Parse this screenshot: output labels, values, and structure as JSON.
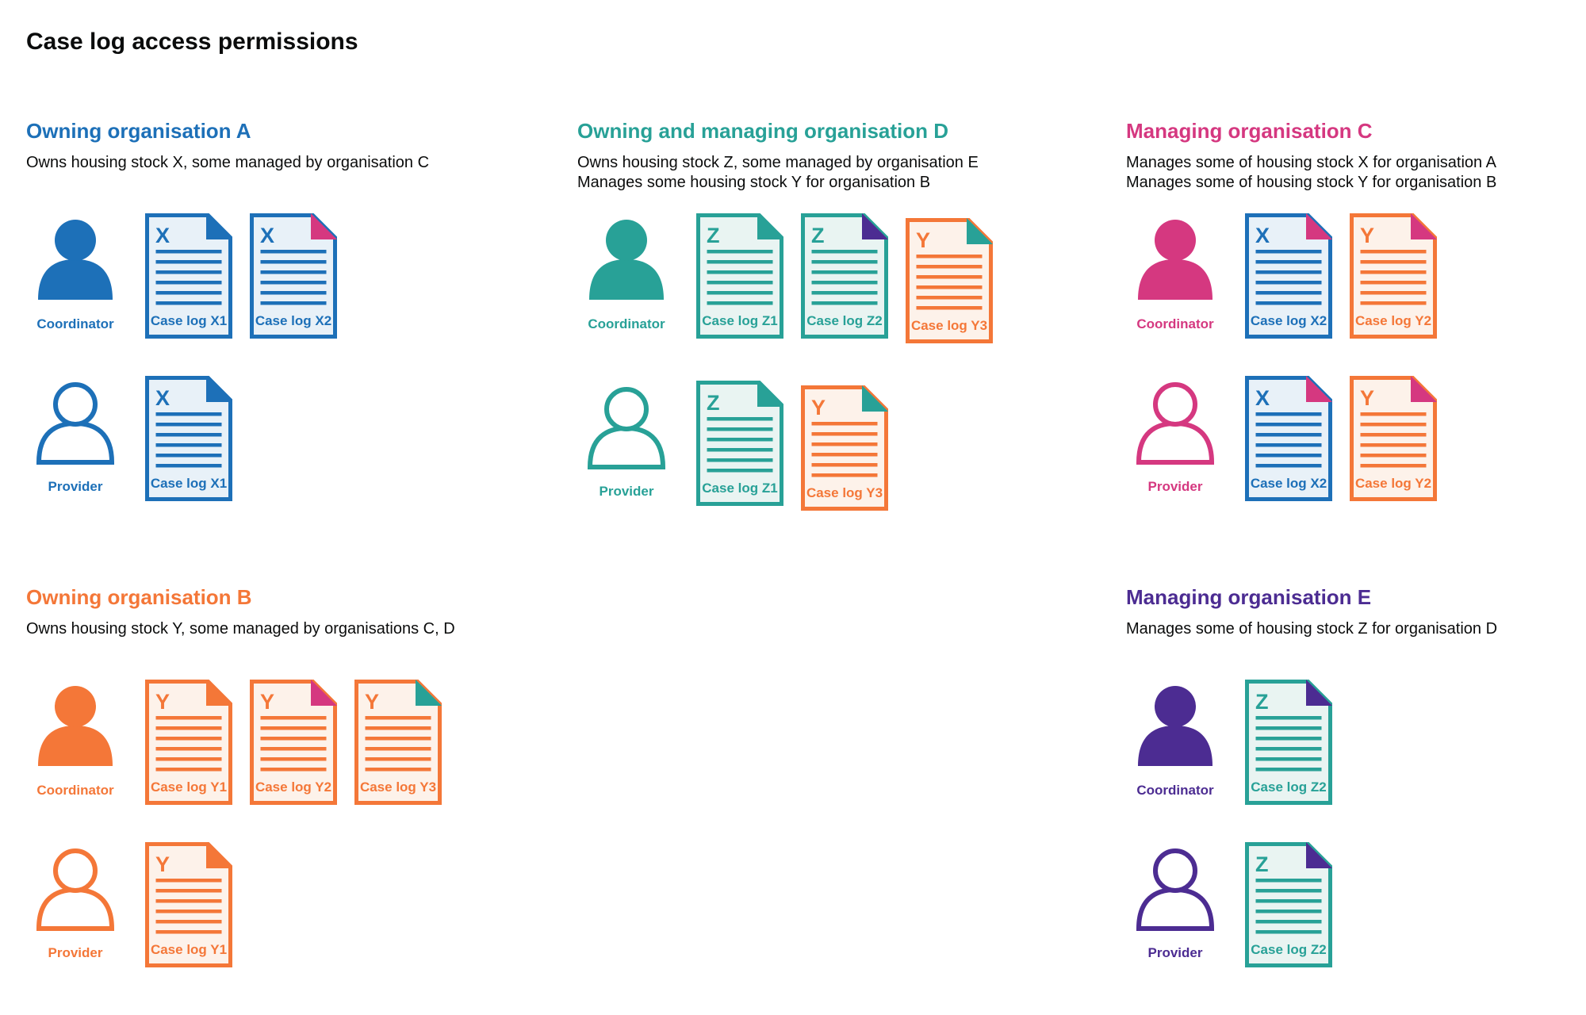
{
  "page": {
    "title": "Case log access permissions"
  },
  "palette": {
    "blue": "#1d70b8",
    "teal": "#28a197",
    "pink": "#d53880",
    "orange": "#f47738",
    "purple": "#4c2c92",
    "blue_fill": "#e8f1f8",
    "teal_fill": "#e9f4f2",
    "orange_fill": "#fdf2ea",
    "text": "#0b0c0c",
    "background": "#ffffff"
  },
  "sections": [
    {
      "id": "owning-organisation-a",
      "heading": "Owning organisation A",
      "color": "blue",
      "description_lines": [
        "Owns housing stock X, some managed by organisation C"
      ],
      "layout": {
        "row": 1,
        "column": 1
      },
      "roles": [
        {
          "role_label": "Coordinator",
          "person_style": "filled",
          "documents": [
            {
              "letter": "X",
              "label": "Case log X1",
              "color": "blue",
              "fold": "blue"
            },
            {
              "letter": "X",
              "label": "Case log X2",
              "color": "blue",
              "fold": "pink"
            }
          ]
        },
        {
          "role_label": "Provider",
          "person_style": "outline",
          "documents": [
            {
              "letter": "X",
              "label": "Case log X1",
              "color": "blue",
              "fold": "blue"
            }
          ]
        }
      ]
    },
    {
      "id": "owning-and-managing-organisation-d",
      "heading": "Owning and managing organisation D",
      "color": "teal",
      "description_lines": [
        "Owns housing stock Z, some managed by organisation E",
        "Manages some housing stock Y for organisation B"
      ],
      "layout": {
        "row": 1,
        "column": 2
      },
      "roles": [
        {
          "role_label": "Coordinator",
          "person_style": "filled",
          "documents": [
            {
              "letter": "Z",
              "label": "Case log Z1",
              "color": "teal",
              "fold": "teal"
            },
            {
              "letter": "Z",
              "label": "Case log Z2",
              "color": "teal",
              "fold": "purple"
            },
            {
              "letter": "Y",
              "label": "Case log Y3",
              "color": "orange",
              "fold": "teal",
              "offset_down": true
            }
          ]
        },
        {
          "role_label": "Provider",
          "person_style": "outline",
          "documents": [
            {
              "letter": "Z",
              "label": "Case log Z1",
              "color": "teal",
              "fold": "teal"
            },
            {
              "letter": "Y",
              "label": "Case log Y3",
              "color": "orange",
              "fold": "teal",
              "offset_down": true
            }
          ]
        }
      ]
    },
    {
      "id": "managing-organisation-c",
      "heading": "Managing organisation C",
      "color": "pink",
      "description_lines": [
        "Manages some of housing stock X for organisation A",
        "Manages some of housing stock Y for organisation B"
      ],
      "layout": {
        "row": 1,
        "column": 3
      },
      "roles": [
        {
          "role_label": "Coordinator",
          "person_style": "filled",
          "documents": [
            {
              "letter": "X",
              "label": "Case log X2",
              "color": "blue",
              "fold": "pink"
            },
            {
              "letter": "Y",
              "label": "Case log Y2",
              "color": "orange",
              "fold": "pink"
            }
          ]
        },
        {
          "role_label": "Provider",
          "person_style": "outline",
          "documents": [
            {
              "letter": "X",
              "label": "Case log X2",
              "color": "blue",
              "fold": "pink"
            },
            {
              "letter": "Y",
              "label": "Case log Y2",
              "color": "orange",
              "fold": "pink"
            }
          ]
        }
      ]
    },
    {
      "id": "owning-organisation-b",
      "heading": "Owning organisation B",
      "color": "orange",
      "description_lines": [
        "Owns housing stock Y, some managed by organisations C, D"
      ],
      "layout": {
        "row": 2,
        "column": 1
      },
      "roles": [
        {
          "role_label": "Coordinator",
          "person_style": "filled",
          "documents": [
            {
              "letter": "Y",
              "label": "Case log Y1",
              "color": "orange",
              "fold": "orange"
            },
            {
              "letter": "Y",
              "label": "Case log Y2",
              "color": "orange",
              "fold": "pink"
            },
            {
              "letter": "Y",
              "label": "Case log Y3",
              "color": "orange",
              "fold": "teal"
            }
          ]
        },
        {
          "role_label": "Provider",
          "person_style": "outline",
          "documents": [
            {
              "letter": "Y",
              "label": "Case log Y1",
              "color": "orange",
              "fold": "orange"
            }
          ]
        }
      ]
    },
    {
      "id": "managing-organisation-e",
      "heading": "Managing organisation E",
      "color": "purple",
      "description_lines": [
        "Manages some of housing stock Z for organisation D"
      ],
      "layout": {
        "row": 2,
        "column": 3
      },
      "roles": [
        {
          "role_label": "Coordinator",
          "person_style": "filled",
          "documents": [
            {
              "letter": "Z",
              "label": "Case log Z2",
              "color": "teal",
              "fold": "purple"
            }
          ]
        },
        {
          "role_label": "Provider",
          "person_style": "outline",
          "documents": [
            {
              "letter": "Z",
              "label": "Case log Z2",
              "color": "teal",
              "fold": "purple"
            }
          ]
        }
      ]
    }
  ]
}
